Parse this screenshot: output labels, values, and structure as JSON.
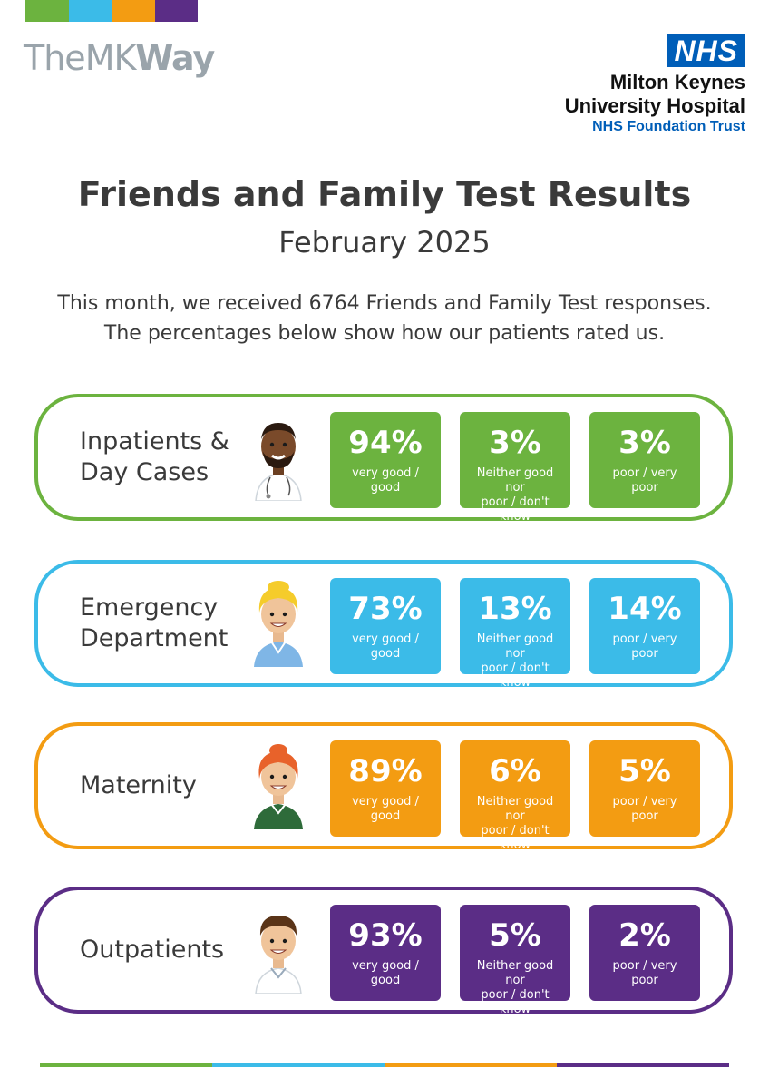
{
  "colors": {
    "green": "#6cb33f",
    "blue": "#3bbbe8",
    "orange": "#f39c12",
    "purple": "#5b2d86"
  },
  "brand": {
    "part1": "The",
    "part2": "MK",
    "part3": "Way"
  },
  "nhs": {
    "logo": "NHS",
    "name_line1": "Milton Keynes",
    "name_line2": "University Hospital",
    "trust": "NHS Foundation Trust"
  },
  "title": "Friends and Family Test Results",
  "subtitle": "February 2025",
  "intro_line1": "This month, we received 6764 Friends and Family Test responses.",
  "intro_line2": "The percentages below show how our patients rated us.",
  "sections": [
    {
      "label": "Inpatients &\nDay Cases",
      "icon": "doctor-avatar-icon",
      "tiles": [
        {
          "pct": "94%",
          "desc": "very good /\ngood"
        },
        {
          "pct": "3%",
          "desc": "Neither good nor\npoor / don't know"
        },
        {
          "pct": "3%",
          "desc": "poor / very\npoor"
        }
      ]
    },
    {
      "label": "Emergency\nDepartment",
      "icon": "nurse-avatar-icon",
      "tiles": [
        {
          "pct": "73%",
          "desc": "very good /\ngood"
        },
        {
          "pct": "13%",
          "desc": "Neither good nor\npoor / don't know"
        },
        {
          "pct": "14%",
          "desc": "poor / very\npoor"
        }
      ]
    },
    {
      "label": "Maternity",
      "icon": "midwife-avatar-icon",
      "tiles": [
        {
          "pct": "89%",
          "desc": "very good /\ngood"
        },
        {
          "pct": "6%",
          "desc": "Neither good nor\npoor / don't know"
        },
        {
          "pct": "5%",
          "desc": "poor / very\npoor"
        }
      ]
    },
    {
      "label": "Outpatients",
      "icon": "patient-avatar-icon",
      "tiles": [
        {
          "pct": "93%",
          "desc": "very good /\ngood"
        },
        {
          "pct": "5%",
          "desc": "Neither good nor\npoor / don't know"
        },
        {
          "pct": "2%",
          "desc": "poor / very\npoor"
        }
      ]
    }
  ]
}
